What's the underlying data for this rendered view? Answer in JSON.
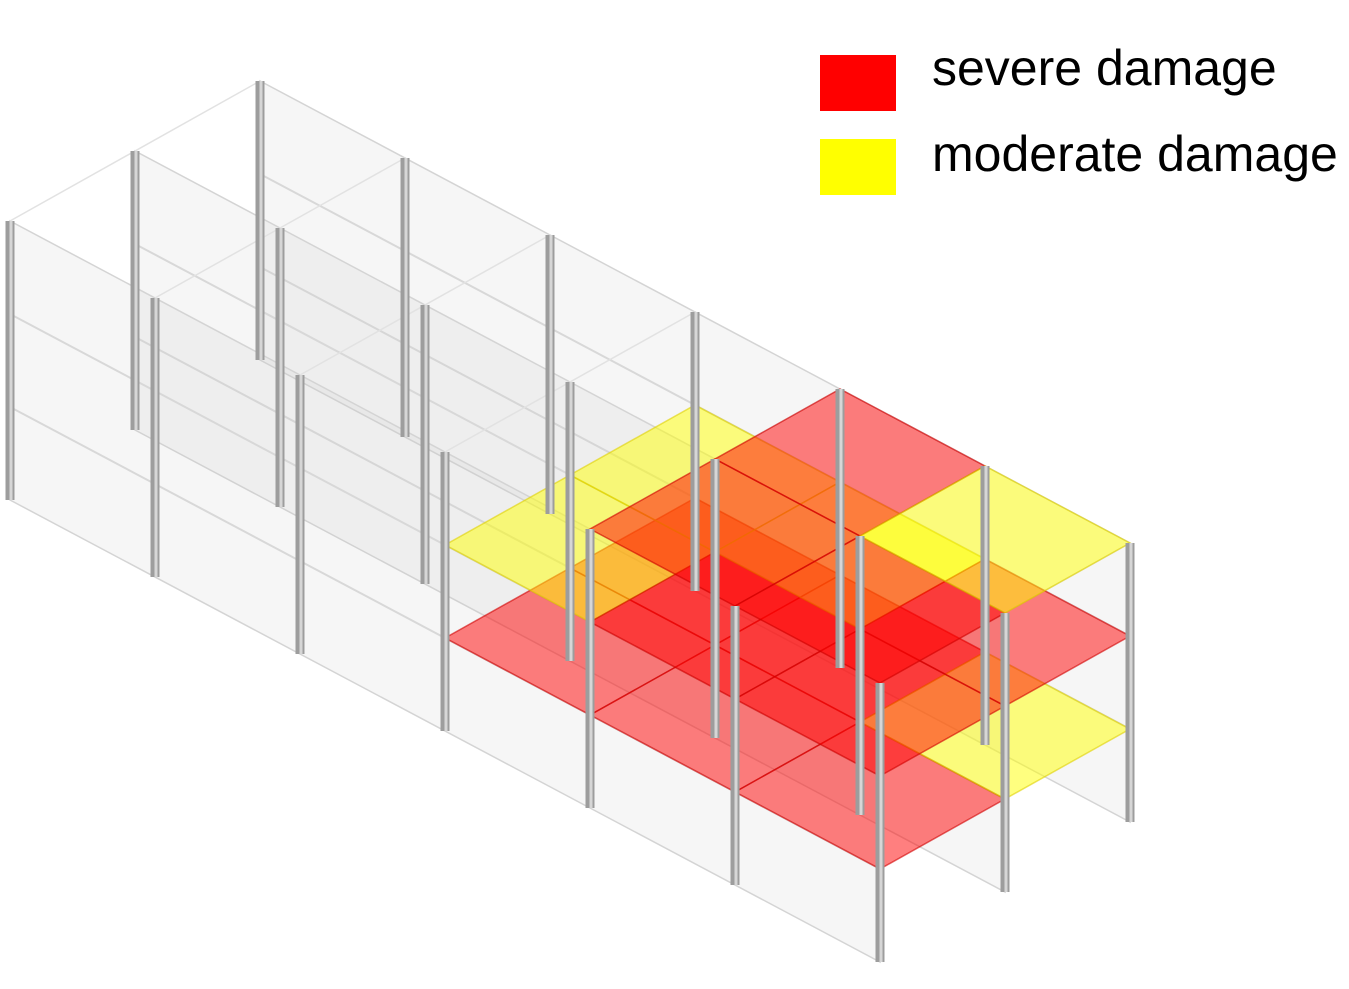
{
  "legend": {
    "items": [
      {
        "label": "severe damage",
        "color": "#ff0000"
      },
      {
        "label": "moderate damage",
        "color": "#ffff00"
      }
    ]
  }
}
